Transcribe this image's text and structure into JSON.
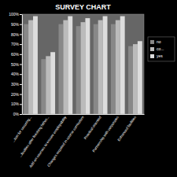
{
  "chart_data": {
    "type": "bar",
    "title": "SURVEY CHART",
    "categories": [
      "...tion for securing...",
      "...ficulties after finishing hither...",
      "Add-on courses to ensure employability",
      "Changes required in course curriculum",
      "Practical oriented",
      "Partnership with corporates",
      "Enhanced facilities"
    ],
    "series": [
      {
        "name": "no",
        "color": "#888888",
        "values": [
          90,
          55,
          90,
          88,
          90,
          90,
          68
        ]
      },
      {
        "name": "co...",
        "color": "#bbbbbb",
        "values": [
          94,
          58,
          94,
          92,
          94,
          94,
          70
        ]
      },
      {
        "name": "yes",
        "color": "#dddddd",
        "values": [
          98,
          62,
          98,
          96,
          98,
          98,
          73
        ]
      }
    ],
    "ylim": [
      0,
      100
    ],
    "yticks": [
      {
        "value": 0,
        "label": "0%"
      },
      {
        "value": 10,
        "label": "10%"
      },
      {
        "value": 20,
        "label": "20%"
      },
      {
        "value": 30,
        "label": "30%"
      },
      {
        "value": 40,
        "label": "40%"
      },
      {
        "value": 50,
        "label": "50%"
      },
      {
        "value": 60,
        "label": "60%"
      },
      {
        "value": 70,
        "label": "70%"
      },
      {
        "value": 80,
        "label": "80%"
      },
      {
        "value": 90,
        "label": "90%"
      },
      {
        "value": 100,
        "label": "100%"
      }
    ],
    "grid": false,
    "legend": "right"
  }
}
